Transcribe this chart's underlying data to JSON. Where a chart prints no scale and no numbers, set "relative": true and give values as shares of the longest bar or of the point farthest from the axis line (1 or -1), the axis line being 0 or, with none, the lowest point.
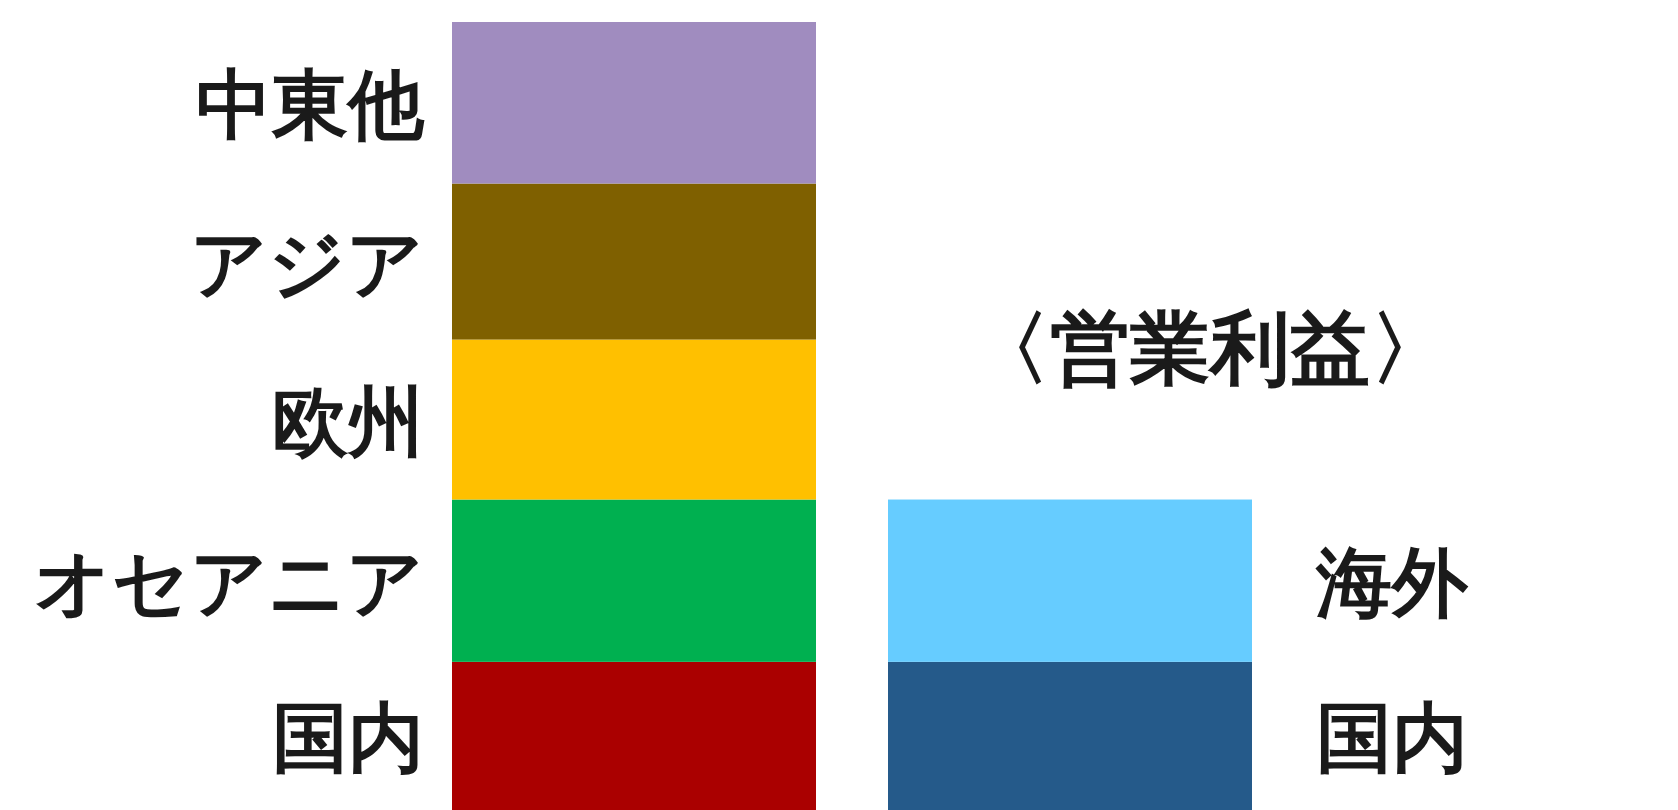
{
  "chart_data": {
    "type": "bar",
    "stacked": true,
    "relative": true,
    "categories": [
      null,
      "〈営業利益〉"
    ],
    "series": [
      {
        "name": "国内",
        "color": "#aa0000",
        "values": [
          0.188,
          null
        ]
      },
      {
        "name": "オセアニア",
        "color": "#00b050",
        "values": [
          0.206,
          null
        ]
      },
      {
        "name": "欧州",
        "color": "#ffc000",
        "values": [
          0.203,
          null
        ]
      },
      {
        "name": "アジア",
        "color": "#7f6000",
        "values": [
          0.198,
          null
        ]
      },
      {
        "name": "中東他",
        "color": "#a08cbf",
        "values": [
          0.205,
          null
        ]
      },
      {
        "name": "国内",
        "color": "#255a8a",
        "values": [
          null,
          0.188
        ]
      },
      {
        "name": "海外",
        "color": "#66ccff",
        "values": [
          null,
          0.206
        ]
      }
    ]
  }
}
